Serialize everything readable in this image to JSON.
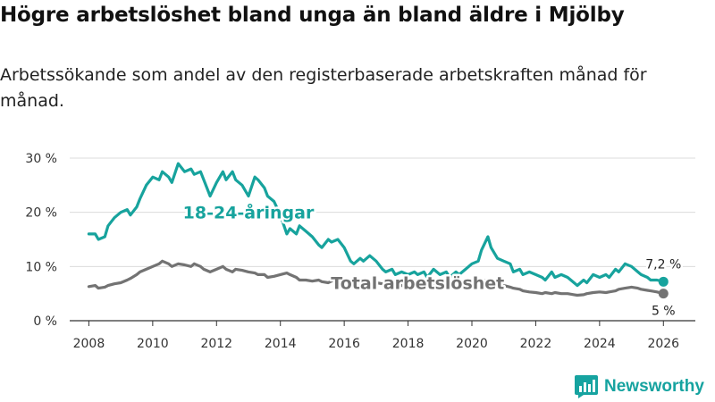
{
  "title": "Högre arbetslöshet bland unga än bland äldre i Mjölby",
  "subtitle": "Arbetssökande som andel av den registerbaserade arbetskraften månad för månad.",
  "brand": {
    "name": "Newsworthy",
    "icon": "bar-chart-logo-icon"
  },
  "colors": {
    "youth": "#17a39d",
    "total": "#737373",
    "grid": "#dcdcdc",
    "axis": "#333333"
  },
  "chart_data": {
    "type": "line",
    "xlabel": "",
    "ylabel": "",
    "xlim": [
      2007.4,
      2027.0
    ],
    "ylim": [
      0,
      30
    ],
    "x_ticks": [
      2008,
      2010,
      2012,
      2014,
      2016,
      2018,
      2020,
      2022,
      2024,
      2026
    ],
    "x_tick_labels": [
      "2008",
      "2010",
      "2012",
      "2014",
      "2016",
      "2018",
      "2020",
      "2022",
      "2024",
      "2026"
    ],
    "y_ticks": [
      0,
      10,
      20,
      30
    ],
    "y_tick_labels": [
      "0 %",
      "10 %",
      "20 %",
      "30 %"
    ],
    "grid": true,
    "series": [
      {
        "name": "18-24-åringar",
        "label": "18-24-åringar",
        "color": "#17a39d",
        "end_label": "7,2 %",
        "points": [
          [
            2008.0,
            16.0
          ],
          [
            2008.2,
            16.0
          ],
          [
            2008.3,
            15.0
          ],
          [
            2008.5,
            15.5
          ],
          [
            2008.6,
            17.5
          ],
          [
            2008.8,
            19.0
          ],
          [
            2009.0,
            20.0
          ],
          [
            2009.2,
            20.5
          ],
          [
            2009.3,
            19.5
          ],
          [
            2009.5,
            21.0
          ],
          [
            2009.6,
            22.5
          ],
          [
            2009.8,
            25.0
          ],
          [
            2010.0,
            26.5
          ],
          [
            2010.2,
            26.0
          ],
          [
            2010.3,
            27.5
          ],
          [
            2010.5,
            26.5
          ],
          [
            2010.6,
            25.5
          ],
          [
            2010.8,
            29.0
          ],
          [
            2011.0,
            27.5
          ],
          [
            2011.2,
            28.0
          ],
          [
            2011.3,
            27.0
          ],
          [
            2011.5,
            27.5
          ],
          [
            2011.6,
            26.0
          ],
          [
            2011.8,
            23.0
          ],
          [
            2012.0,
            25.5
          ],
          [
            2012.2,
            27.5
          ],
          [
            2012.3,
            26.0
          ],
          [
            2012.5,
            27.5
          ],
          [
            2012.6,
            26.0
          ],
          [
            2012.8,
            25.0
          ],
          [
            2013.0,
            23.0
          ],
          [
            2013.2,
            26.5
          ],
          [
            2013.3,
            26.0
          ],
          [
            2013.5,
            24.5
          ],
          [
            2013.6,
            23.0
          ],
          [
            2013.8,
            22.0
          ],
          [
            2014.0,
            19.5
          ],
          [
            2014.2,
            16.0
          ],
          [
            2014.3,
            17.0
          ],
          [
            2014.5,
            16.0
          ],
          [
            2014.6,
            17.5
          ],
          [
            2014.8,
            16.5
          ],
          [
            2015.0,
            15.5
          ],
          [
            2015.2,
            14.0
          ],
          [
            2015.3,
            13.5
          ],
          [
            2015.5,
            15.0
          ],
          [
            2015.6,
            14.5
          ],
          [
            2015.8,
            15.0
          ],
          [
            2016.0,
            13.5
          ],
          [
            2016.2,
            11.0
          ],
          [
            2016.3,
            10.5
          ],
          [
            2016.5,
            11.5
          ],
          [
            2016.6,
            11.0
          ],
          [
            2016.8,
            12.0
          ],
          [
            2017.0,
            11.0
          ],
          [
            2017.2,
            9.5
          ],
          [
            2017.3,
            9.0
          ],
          [
            2017.5,
            9.5
          ],
          [
            2017.6,
            8.5
          ],
          [
            2017.8,
            9.0
          ],
          [
            2018.0,
            8.5
          ],
          [
            2018.2,
            9.0
          ],
          [
            2018.3,
            8.5
          ],
          [
            2018.5,
            9.0
          ],
          [
            2018.6,
            8.0
          ],
          [
            2018.8,
            9.5
          ],
          [
            2019.0,
            8.5
          ],
          [
            2019.2,
            9.0
          ],
          [
            2019.3,
            8.0
          ],
          [
            2019.5,
            9.0
          ],
          [
            2019.6,
            8.5
          ],
          [
            2019.8,
            9.5
          ],
          [
            2020.0,
            10.5
          ],
          [
            2020.2,
            11.0
          ],
          [
            2020.3,
            13.0
          ],
          [
            2020.5,
            15.5
          ],
          [
            2020.6,
            13.5
          ],
          [
            2020.8,
            11.5
          ],
          [
            2021.0,
            11.0
          ],
          [
            2021.2,
            10.5
          ],
          [
            2021.3,
            9.0
          ],
          [
            2021.5,
            9.5
          ],
          [
            2021.6,
            8.5
          ],
          [
            2021.8,
            9.0
          ],
          [
            2022.0,
            8.5
          ],
          [
            2022.2,
            8.0
          ],
          [
            2022.3,
            7.5
          ],
          [
            2022.5,
            9.0
          ],
          [
            2022.6,
            8.0
          ],
          [
            2022.8,
            8.5
          ],
          [
            2023.0,
            8.0
          ],
          [
            2023.2,
            7.0
          ],
          [
            2023.3,
            6.5
          ],
          [
            2023.5,
            7.5
          ],
          [
            2023.6,
            7.0
          ],
          [
            2023.8,
            8.5
          ],
          [
            2024.0,
            8.0
          ],
          [
            2024.2,
            8.5
          ],
          [
            2024.3,
            8.0
          ],
          [
            2024.5,
            9.5
          ],
          [
            2024.6,
            9.0
          ],
          [
            2024.8,
            10.5
          ],
          [
            2025.0,
            10.0
          ],
          [
            2025.2,
            9.0
          ],
          [
            2025.3,
            8.5
          ],
          [
            2025.5,
            8.0
          ],
          [
            2025.6,
            7.5
          ],
          [
            2025.8,
            7.5
          ],
          [
            2026.0,
            7.2
          ]
        ]
      },
      {
        "name": "Total arbetslöshet",
        "label": "Total arbetslöshet",
        "color": "#737373",
        "end_label": "5 %",
        "points": [
          [
            2008.0,
            6.3
          ],
          [
            2008.2,
            6.5
          ],
          [
            2008.3,
            6.0
          ],
          [
            2008.5,
            6.2
          ],
          [
            2008.6,
            6.5
          ],
          [
            2008.8,
            6.8
          ],
          [
            2009.0,
            7.0
          ],
          [
            2009.2,
            7.5
          ],
          [
            2009.3,
            7.8
          ],
          [
            2009.5,
            8.5
          ],
          [
            2009.6,
            9.0
          ],
          [
            2009.8,
            9.5
          ],
          [
            2010.0,
            10.0
          ],
          [
            2010.2,
            10.5
          ],
          [
            2010.3,
            11.0
          ],
          [
            2010.5,
            10.5
          ],
          [
            2010.6,
            10.0
          ],
          [
            2010.8,
            10.5
          ],
          [
            2011.0,
            10.3
          ],
          [
            2011.2,
            10.0
          ],
          [
            2011.3,
            10.5
          ],
          [
            2011.5,
            10.0
          ],
          [
            2011.6,
            9.5
          ],
          [
            2011.8,
            9.0
          ],
          [
            2012.0,
            9.5
          ],
          [
            2012.2,
            10.0
          ],
          [
            2012.3,
            9.5
          ],
          [
            2012.5,
            9.0
          ],
          [
            2012.6,
            9.5
          ],
          [
            2012.8,
            9.3
          ],
          [
            2013.0,
            9.0
          ],
          [
            2013.2,
            8.8
          ],
          [
            2013.3,
            8.5
          ],
          [
            2013.5,
            8.5
          ],
          [
            2013.6,
            8.0
          ],
          [
            2013.8,
            8.2
          ],
          [
            2014.0,
            8.5
          ],
          [
            2014.2,
            8.8
          ],
          [
            2014.3,
            8.5
          ],
          [
            2014.5,
            8.0
          ],
          [
            2014.6,
            7.5
          ],
          [
            2014.8,
            7.5
          ],
          [
            2015.0,
            7.3
          ],
          [
            2015.2,
            7.5
          ],
          [
            2015.3,
            7.2
          ],
          [
            2015.5,
            7.0
          ],
          [
            2015.6,
            7.3
          ],
          [
            2015.8,
            7.5
          ],
          [
            2016.0,
            7.5
          ],
          [
            2016.2,
            7.0
          ],
          [
            2016.3,
            6.8
          ],
          [
            2016.5,
            6.5
          ],
          [
            2016.6,
            6.8
          ],
          [
            2016.8,
            7.0
          ],
          [
            2017.0,
            7.0
          ],
          [
            2017.2,
            6.8
          ],
          [
            2017.3,
            6.5
          ],
          [
            2017.5,
            6.5
          ],
          [
            2017.6,
            6.3
          ],
          [
            2017.8,
            6.5
          ],
          [
            2018.0,
            6.3
          ],
          [
            2018.2,
            6.5
          ],
          [
            2018.3,
            6.2
          ],
          [
            2018.5,
            6.0
          ],
          [
            2018.6,
            6.2
          ],
          [
            2018.8,
            6.5
          ],
          [
            2019.0,
            6.3
          ],
          [
            2019.2,
            6.5
          ],
          [
            2019.3,
            6.2
          ],
          [
            2019.5,
            6.0
          ],
          [
            2019.6,
            6.3
          ],
          [
            2019.8,
            6.5
          ],
          [
            2020.0,
            6.8
          ],
          [
            2020.2,
            7.0
          ],
          [
            2020.3,
            7.3
          ],
          [
            2020.5,
            7.5
          ],
          [
            2020.6,
            7.2
          ],
          [
            2020.8,
            6.8
          ],
          [
            2021.0,
            6.5
          ],
          [
            2021.2,
            6.2
          ],
          [
            2021.3,
            6.0
          ],
          [
            2021.5,
            5.8
          ],
          [
            2021.6,
            5.5
          ],
          [
            2021.8,
            5.3
          ],
          [
            2022.0,
            5.2
          ],
          [
            2022.2,
            5.0
          ],
          [
            2022.3,
            5.2
          ],
          [
            2022.5,
            5.0
          ],
          [
            2022.6,
            5.2
          ],
          [
            2022.8,
            5.0
          ],
          [
            2023.0,
            5.0
          ],
          [
            2023.2,
            4.8
          ],
          [
            2023.3,
            4.7
          ],
          [
            2023.5,
            4.8
          ],
          [
            2023.6,
            5.0
          ],
          [
            2023.8,
            5.2
          ],
          [
            2024.0,
            5.3
          ],
          [
            2024.2,
            5.2
          ],
          [
            2024.3,
            5.3
          ],
          [
            2024.5,
            5.5
          ],
          [
            2024.6,
            5.8
          ],
          [
            2024.8,
            6.0
          ],
          [
            2025.0,
            6.2
          ],
          [
            2025.2,
            6.0
          ],
          [
            2025.3,
            5.8
          ],
          [
            2025.5,
            5.6
          ],
          [
            2025.6,
            5.5
          ],
          [
            2025.8,
            5.3
          ],
          [
            2026.0,
            5.0
          ]
        ]
      }
    ]
  }
}
